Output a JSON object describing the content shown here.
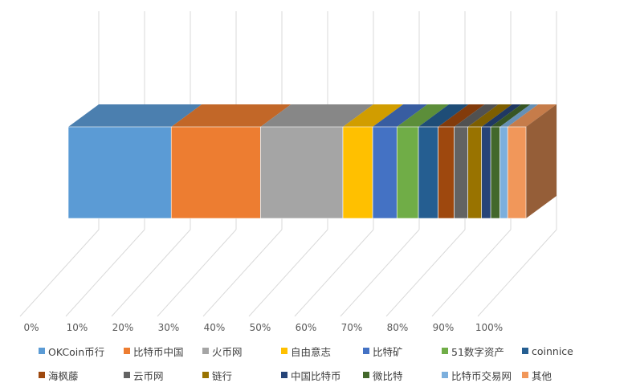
{
  "chart_data": {
    "type": "bar",
    "orientation": "horizontal",
    "stacked": "100%",
    "style": "3d",
    "title": "",
    "xlabel": "",
    "ylabel": "",
    "xlim": [
      0,
      100
    ],
    "x_ticks": [
      "0%",
      "10%",
      "20%",
      "30%",
      "40%",
      "50%",
      "60%",
      "70%",
      "80%",
      "90%",
      "100%"
    ],
    "grid": true,
    "legend_position": "bottom",
    "series": [
      {
        "name": "OKCoin币行",
        "value": 22.5,
        "color": "#5b9bd5"
      },
      {
        "name": "比特币中国",
        "value": 19.5,
        "color": "#ed7d31"
      },
      {
        "name": "火币网",
        "value": 18.0,
        "color": "#a5a5a5"
      },
      {
        "name": "自由意志",
        "value": 6.5,
        "color": "#ffc000"
      },
      {
        "name": "比特矿",
        "value": 5.3,
        "color": "#4472c4"
      },
      {
        "name": "51数字资产",
        "value": 4.7,
        "color": "#70ad47"
      },
      {
        "name": "coinnice",
        "value": 4.3,
        "color": "#255e91"
      },
      {
        "name": "海枫藤",
        "value": 3.5,
        "color": "#9e480e"
      },
      {
        "name": "云币网",
        "value": 3.0,
        "color": "#636363"
      },
      {
        "name": "链行",
        "value": 3.0,
        "color": "#997300"
      },
      {
        "name": "中国比特币",
        "value": 2.0,
        "color": "#264478"
      },
      {
        "name": "微比特",
        "value": 2.0,
        "color": "#43682b"
      },
      {
        "name": "比特币交易网",
        "value": 1.7,
        "color": "#7cafdd"
      },
      {
        "name": "其他",
        "value": 4.0,
        "color": "#f1975a"
      }
    ]
  }
}
